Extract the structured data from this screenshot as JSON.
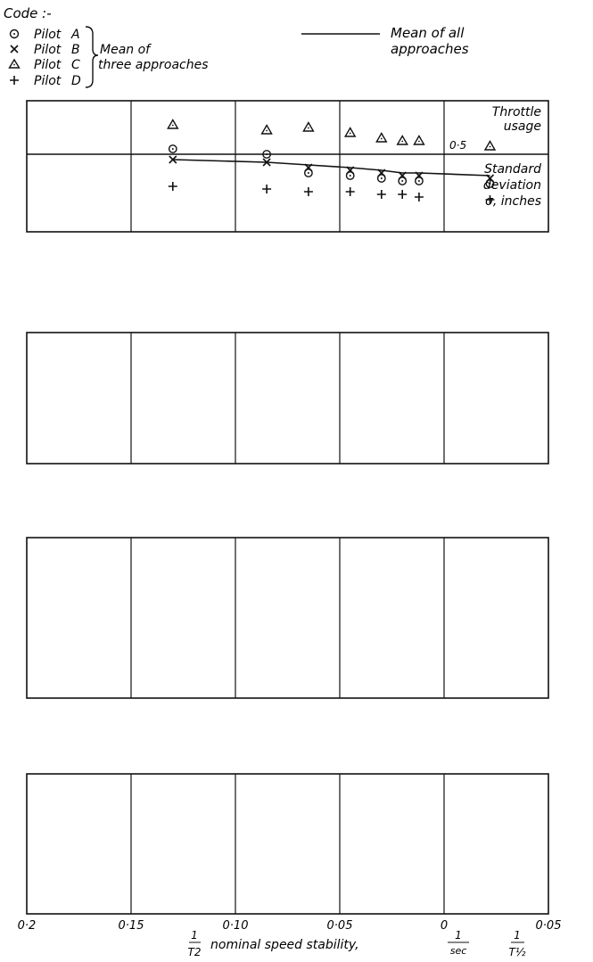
{
  "legend": {
    "code_label": "Code :-",
    "pilots": [
      {
        "symbol": "circle",
        "name": "Pilot",
        "letter": "A"
      },
      {
        "symbol": "cross",
        "name": "Pilot",
        "letter": "B"
      },
      {
        "symbol": "triangle",
        "name": "Pilot",
        "letter": "C"
      },
      {
        "symbol": "plus",
        "name": "Pilot",
        "letter": "D"
      }
    ],
    "mean_three_line1": "Mean of",
    "mean_three_line2": "three approaches",
    "mean_all_line1": "Mean of all",
    "mean_all_line2": "approaches"
  },
  "x_axis": {
    "tick_labels": [
      {
        "value": 0.2,
        "text": "0·2"
      },
      {
        "value": 0.15,
        "text": "0·15"
      },
      {
        "value": 0.1,
        "text": "0·10"
      },
      {
        "value": 0.05,
        "text": "0·05"
      },
      {
        "value": 0.0,
        "text": "0"
      },
      {
        "value": -0.05,
        "text": "0·05"
      }
    ],
    "label": "nominal speed stability,",
    "label_frac_t2_num": "1",
    "label_frac_t2_den": "T2",
    "label_frac_sec_num": "1",
    "label_frac_sec_den": "sec",
    "label_frac_thalf_num": "1",
    "label_frac_thalf_den": "T½"
  },
  "chart_data": [
    {
      "type": "scatter",
      "title": "Throttle usage",
      "ylabel": "Standard deviation σ, inches",
      "ref_label": "0·5",
      "x": [
        0.13,
        0.085,
        0.065,
        0.045,
        0.03,
        0.02,
        0.012,
        -0.022
      ],
      "series": [
        {
          "name": "Pilot A",
          "values": [
            0.52,
            0.5,
            0.43,
            0.42,
            0.41,
            0.4,
            0.4,
            0.39
          ]
        },
        {
          "name": "Pilot B",
          "values": [
            0.48,
            0.47,
            0.45,
            0.44,
            0.43,
            0.42,
            0.42,
            0.41
          ]
        },
        {
          "name": "Pilot C",
          "values": [
            0.61,
            0.59,
            0.6,
            0.58,
            0.56,
            0.55,
            0.55,
            0.53
          ]
        },
        {
          "name": "Pilot D",
          "values": [
            0.38,
            0.37,
            0.36,
            0.36,
            0.35,
            0.35,
            0.34,
            0.33
          ]
        }
      ],
      "mean": [
        0.48,
        0.47,
        0.46,
        0.45,
        0.44,
        0.43,
        0.43,
        0.42
      ]
    }
  ]
}
